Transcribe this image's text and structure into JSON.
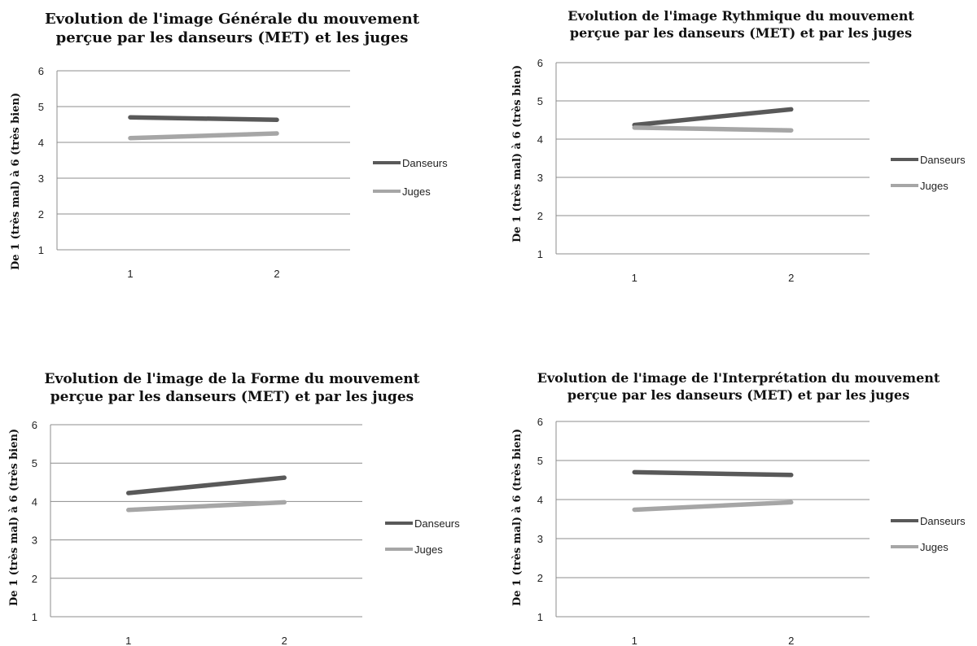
{
  "colors": {
    "danseurs": "#595959",
    "juges": "#a6a6a6",
    "grid": "#8c8c8c"
  },
  "chart_data": [
    {
      "type": "line",
      "title": "Evolution de l'image Générale du mouvement perçue par les danseurs (MET) et les juges",
      "title_lines": [
        "Evolution de l'image Générale du mouvement",
        "perçue par les danseurs (MET) et les juges"
      ],
      "ylabel": "De 1 (très mal) à 6 (très bien)",
      "categories": [
        "1",
        "2"
      ],
      "ylim": [
        1,
        6
      ],
      "yticks": [
        "1",
        "2",
        "3",
        "4",
        "5",
        "6"
      ],
      "grid": true,
      "legend": "right",
      "series": [
        {
          "name": "Danseurs",
          "values": [
            4.7,
            4.63
          ]
        },
        {
          "name": "Juges",
          "values": [
            4.12,
            4.25
          ]
        }
      ]
    },
    {
      "type": "line",
      "title": "Evolution de l'image Rythmique du mouvement perçue par les danseurs (MET) et par les juges",
      "title_lines": [
        "Evolution de l'image Rythmique du mouvement",
        "perçue par les danseurs (MET) et par les juges"
      ],
      "ylabel": "De 1 (très mal) à 6 (très bien)",
      "categories": [
        "1",
        "2"
      ],
      "ylim": [
        1,
        6
      ],
      "yticks": [
        "1",
        "2",
        "3",
        "4",
        "5",
        "6"
      ],
      "grid": true,
      "legend": "right",
      "series": [
        {
          "name": "Danseurs",
          "values": [
            4.37,
            4.78
          ]
        },
        {
          "name": "Juges",
          "values": [
            4.3,
            4.23
          ]
        }
      ]
    },
    {
      "type": "line",
      "title": "Evolution de l'image de la Forme du mouvement perçue par les danseurs (MET) et par les juges",
      "title_lines": [
        "Evolution de l'image de la Forme du mouvement",
        "perçue par les danseurs (MET) et par les juges"
      ],
      "ylabel": "De 1 (très mal) à 6 (très bien)",
      "categories": [
        "1",
        "2"
      ],
      "ylim": [
        1,
        6
      ],
      "yticks": [
        "1",
        "2",
        "3",
        "4",
        "5",
        "6"
      ],
      "grid": true,
      "legend": "right",
      "series": [
        {
          "name": "Danseurs",
          "values": [
            4.22,
            4.62
          ]
        },
        {
          "name": "Juges",
          "values": [
            3.78,
            3.98
          ]
        }
      ]
    },
    {
      "type": "line",
      "title": "Evolution de l'image de l'Interprétation du mouvement perçue par les danseurs (MET) et par les juges",
      "title_lines": [
        "Evolution de l'image de l'Interprétation du mouvement",
        "perçue par les danseurs (MET) et par les juges"
      ],
      "ylabel": "De 1 (très mal) à 6 (très bien)",
      "categories": [
        "1",
        "2"
      ],
      "ylim": [
        1,
        6
      ],
      "yticks": [
        "1",
        "2",
        "3",
        "4",
        "5",
        "6"
      ],
      "grid": true,
      "legend": "right",
      "series": [
        {
          "name": "Danseurs",
          "values": [
            4.7,
            4.63
          ]
        },
        {
          "name": "Juges",
          "values": [
            3.74,
            3.93
          ]
        }
      ]
    }
  ]
}
